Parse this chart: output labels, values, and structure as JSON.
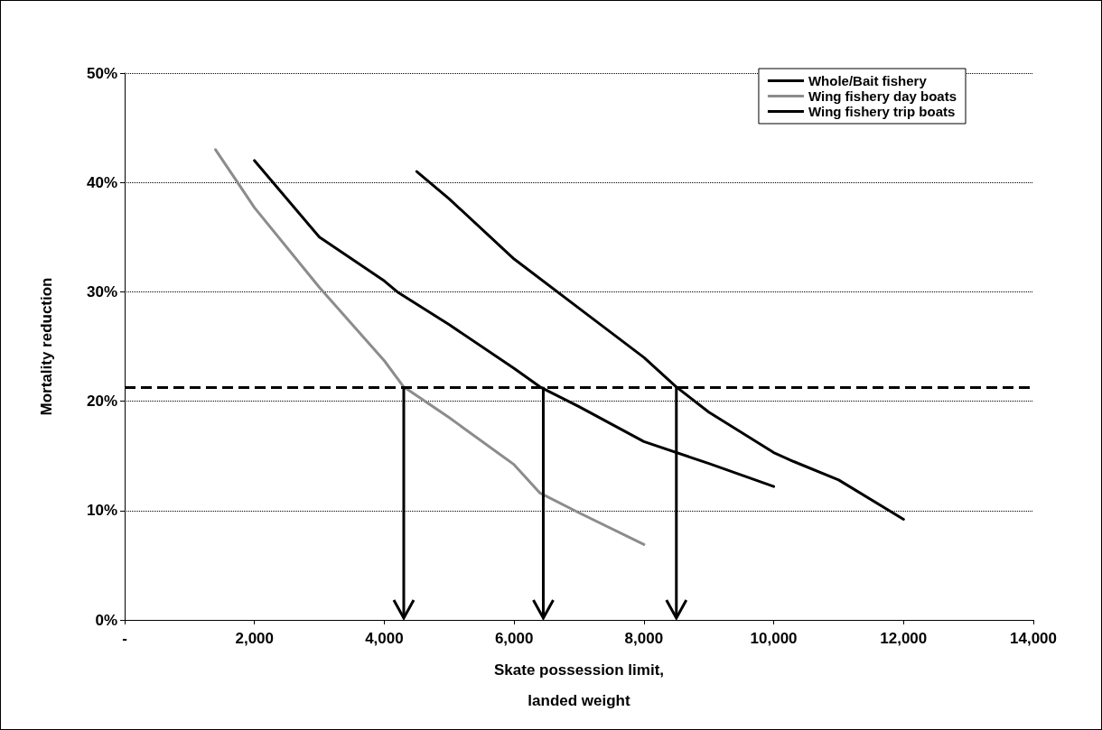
{
  "chart_data": {
    "type": "line",
    "xlabel": "Skate possession limit,\nlanded weight",
    "ylabel": "Mortality reduction",
    "series": [
      {
        "name": "Whole/Bait fishery",
        "color": "#000000",
        "x": [
          4500,
          5000,
          6000,
          7000,
          8000,
          8500,
          9000,
          10000,
          10300,
          11000,
          12000
        ],
        "values": [
          41,
          38.5,
          33,
          28.5,
          24,
          21.3,
          19,
          15.3,
          14.5,
          12.8,
          9.2
        ]
      },
      {
        "name": "Wing fishery day boats",
        "color": "#8c8c8c",
        "x": [
          1400,
          2000,
          3000,
          4000,
          4300,
          5000,
          6000,
          6400,
          7000,
          8000
        ],
        "values": [
          43,
          37.7,
          30.4,
          23.7,
          21.3,
          18.5,
          14.2,
          11.6,
          9.8,
          6.9
        ]
      },
      {
        "name": "Wing fishery trip boats",
        "color": "#000000",
        "x": [
          2000,
          3000,
          4000,
          4200,
          5000,
          6000,
          6400,
          7000,
          8000,
          9000,
          10000
        ],
        "values": [
          42,
          35,
          31,
          30,
          27,
          23,
          21.3,
          19.5,
          16.3,
          14.3,
          12.2
        ]
      }
    ],
    "xlim": [
      0,
      14000
    ],
    "xticks": [
      {
        "value": 0,
        "label": "-"
      },
      {
        "value": 2000,
        "label": "2,000"
      },
      {
        "value": 4000,
        "label": "4,000"
      },
      {
        "value": 6000,
        "label": "6,000"
      },
      {
        "value": 8000,
        "label": "8,000"
      },
      {
        "value": 10000,
        "label": "10,000"
      },
      {
        "value": 12000,
        "label": "12,000"
      },
      {
        "value": 14000,
        "label": "14,000"
      }
    ],
    "ylim": [
      0,
      50
    ],
    "yticks": [
      {
        "value": 0,
        "label": "0%"
      },
      {
        "value": 10,
        "label": "10%"
      },
      {
        "value": 20,
        "label": "20%"
      },
      {
        "value": 30,
        "label": "30%"
      },
      {
        "value": 40,
        "label": "40%"
      },
      {
        "value": 50,
        "label": "50%"
      }
    ],
    "ref_lines": [
      {
        "axis": "y",
        "value": 21.3,
        "color": "#000000",
        "line_style": "dashed"
      },
      {
        "axis": "x",
        "value": 4300,
        "color": "#000000"
      },
      {
        "axis": "x",
        "value": 6450,
        "color": "#000000"
      },
      {
        "axis": "x",
        "value": 8500,
        "color": "#000000"
      }
    ],
    "grid": "y",
    "legend": "top right",
    "marker": "none",
    "line_style": "solid"
  }
}
